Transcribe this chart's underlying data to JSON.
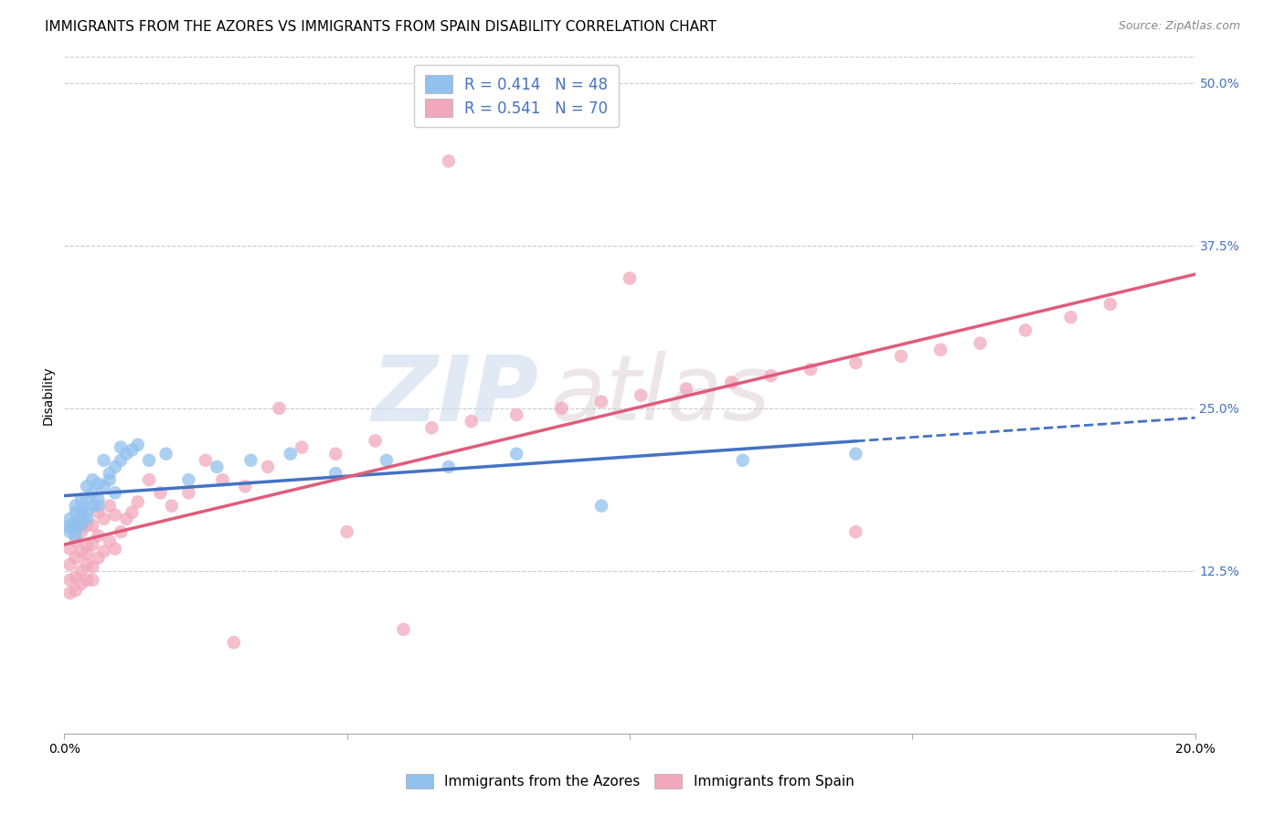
{
  "title": "IMMIGRANTS FROM THE AZORES VS IMMIGRANTS FROM SPAIN DISABILITY CORRELATION CHART",
  "source": "Source: ZipAtlas.com",
  "ylabel": "Disability",
  "xlim": [
    0.0,
    0.2
  ],
  "ylim": [
    0.0,
    0.52
  ],
  "yticks": [
    0.125,
    0.25,
    0.375,
    0.5
  ],
  "ytick_labels": [
    "12.5%",
    "25.0%",
    "37.5%",
    "50.0%"
  ],
  "watermark_zip": "ZIP",
  "watermark_atlas": "atlas",
  "legend_R_azores": "R = 0.414",
  "legend_N_azores": "N = 48",
  "legend_R_spain": "R = 0.541",
  "legend_N_spain": "N = 70",
  "color_azores": "#92C1EE",
  "color_spain": "#F2A8BC",
  "line_color_azores": "#4472C4",
  "line_color_spain": "#E05C7A",
  "azores_x": [
    0.001,
    0.001,
    0.001,
    0.001,
    0.002,
    0.002,
    0.002,
    0.002,
    0.002,
    0.003,
    0.003,
    0.003,
    0.003,
    0.003,
    0.004,
    0.004,
    0.004,
    0.004,
    0.005,
    0.005,
    0.005,
    0.006,
    0.006,
    0.006,
    0.007,
    0.007,
    0.008,
    0.008,
    0.009,
    0.009,
    0.01,
    0.01,
    0.011,
    0.012,
    0.013,
    0.015,
    0.018,
    0.022,
    0.027,
    0.033,
    0.04,
    0.048,
    0.057,
    0.068,
    0.08,
    0.095,
    0.12,
    0.14
  ],
  "azores_y": [
    0.155,
    0.16,
    0.165,
    0.158,
    0.152,
    0.162,
    0.17,
    0.158,
    0.175,
    0.165,
    0.172,
    0.18,
    0.16,
    0.168,
    0.17,
    0.18,
    0.19,
    0.165,
    0.175,
    0.185,
    0.195,
    0.18,
    0.192,
    0.175,
    0.19,
    0.21,
    0.195,
    0.2,
    0.205,
    0.185,
    0.21,
    0.22,
    0.215,
    0.218,
    0.222,
    0.21,
    0.215,
    0.195,
    0.205,
    0.21,
    0.215,
    0.2,
    0.21,
    0.205,
    0.215,
    0.175,
    0.21,
    0.215
  ],
  "spain_x": [
    0.001,
    0.001,
    0.001,
    0.001,
    0.002,
    0.002,
    0.002,
    0.002,
    0.002,
    0.003,
    0.003,
    0.003,
    0.003,
    0.004,
    0.004,
    0.004,
    0.004,
    0.004,
    0.005,
    0.005,
    0.005,
    0.005,
    0.006,
    0.006,
    0.006,
    0.007,
    0.007,
    0.008,
    0.008,
    0.009,
    0.009,
    0.01,
    0.011,
    0.012,
    0.013,
    0.015,
    0.017,
    0.019,
    0.022,
    0.025,
    0.028,
    0.032,
    0.036,
    0.042,
    0.048,
    0.055,
    0.065,
    0.072,
    0.08,
    0.088,
    0.095,
    0.102,
    0.11,
    0.118,
    0.125,
    0.132,
    0.14,
    0.148,
    0.155,
    0.162,
    0.17,
    0.178,
    0.185,
    0.068,
    0.1,
    0.038,
    0.05,
    0.03,
    0.06,
    0.14
  ],
  "spain_y": [
    0.13,
    0.118,
    0.142,
    0.108,
    0.12,
    0.135,
    0.148,
    0.11,
    0.158,
    0.125,
    0.14,
    0.115,
    0.155,
    0.13,
    0.145,
    0.118,
    0.16,
    0.138,
    0.128,
    0.145,
    0.16,
    0.118,
    0.135,
    0.152,
    0.17,
    0.14,
    0.165,
    0.148,
    0.175,
    0.142,
    0.168,
    0.155,
    0.165,
    0.17,
    0.178,
    0.195,
    0.185,
    0.175,
    0.185,
    0.21,
    0.195,
    0.19,
    0.205,
    0.22,
    0.215,
    0.225,
    0.235,
    0.24,
    0.245,
    0.25,
    0.255,
    0.26,
    0.265,
    0.27,
    0.275,
    0.28,
    0.285,
    0.29,
    0.295,
    0.3,
    0.31,
    0.32,
    0.33,
    0.44,
    0.35,
    0.25,
    0.155,
    0.07,
    0.08,
    0.155
  ],
  "background_color": "#ffffff",
  "grid_color": "#cccccc",
  "title_fontsize": 11,
  "axis_label_fontsize": 10,
  "tick_fontsize": 10,
  "legend_fontsize": 12
}
